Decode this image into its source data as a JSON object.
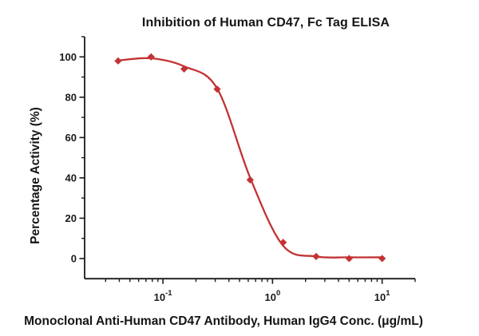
{
  "chart_data": {
    "type": "scatter",
    "title": "Inhibition of Human CD47, Fc Tag ELISA",
    "xlabel": "Monoclonal Anti-Human CD47 Antibody, Human IgG4 Conc. (μg/mL)",
    "ylabel": "Percentage Activity (%)",
    "x_scale": "log10",
    "x_range": [
      0.0193,
      20
    ],
    "y_range": [
      -10,
      110
    ],
    "x_major_ticks": [
      0.1,
      1,
      10
    ],
    "y_major_ticks": [
      0,
      20,
      40,
      60,
      80,
      100
    ],
    "y_minor_step": 10,
    "grid": false,
    "legend_position": "none",
    "axis_color": "#1a1a1a",
    "series": [
      {
        "name": "Monoclonal Anti-Human CD47 Antibody",
        "marker": "diamond",
        "color": "#C23333",
        "x": [
          0.039,
          0.078,
          0.156,
          0.3125,
          0.625,
          1.25,
          2.5,
          5,
          10
        ],
        "y": [
          98,
          100,
          94,
          84,
          39,
          8,
          1,
          0,
          0
        ]
      }
    ],
    "fit_curve": {
      "type": "sigmoidal-dose-response",
      "color": "#C23333",
      "x": [
        0.039,
        0.078,
        0.156,
        0.3125,
        0.625,
        1.25,
        2.5,
        5,
        10
      ],
      "y": [
        98.2,
        99.3,
        95.3,
        84.3,
        40.0,
        6.3,
        1.0,
        0.6,
        0.6
      ]
    }
  }
}
